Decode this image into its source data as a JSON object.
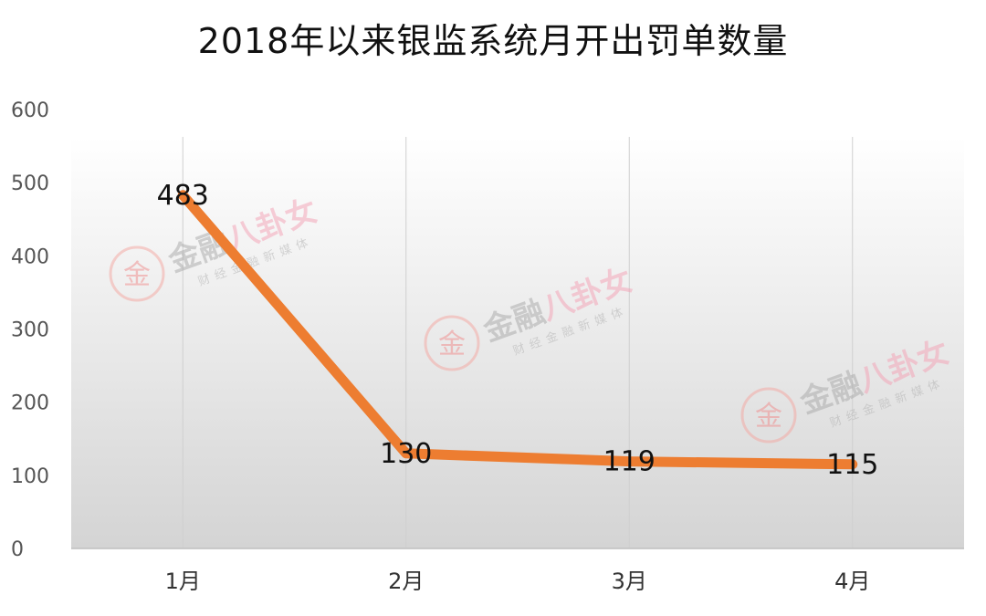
{
  "chart_data": {
    "type": "line",
    "title": "2018年以来银监系统月开出罚单数量",
    "categories": [
      "1月",
      "2月",
      "3月",
      "4月"
    ],
    "series": [
      {
        "values": [
          483,
          130,
          119,
          115
        ],
        "data_labels": [
          "483",
          "130",
          "119",
          "115"
        ]
      }
    ],
    "ylim": [
      0,
      600
    ],
    "yticks": [
      "0",
      "100",
      "200",
      "300",
      "400",
      "500",
      "600"
    ],
    "grid": "vertical",
    "line_color": "#ed7d31"
  },
  "watermark": {
    "main_a": "金融",
    "main_b": "八卦女",
    "sub": "财经金融新媒体",
    "logo_char": "金"
  }
}
